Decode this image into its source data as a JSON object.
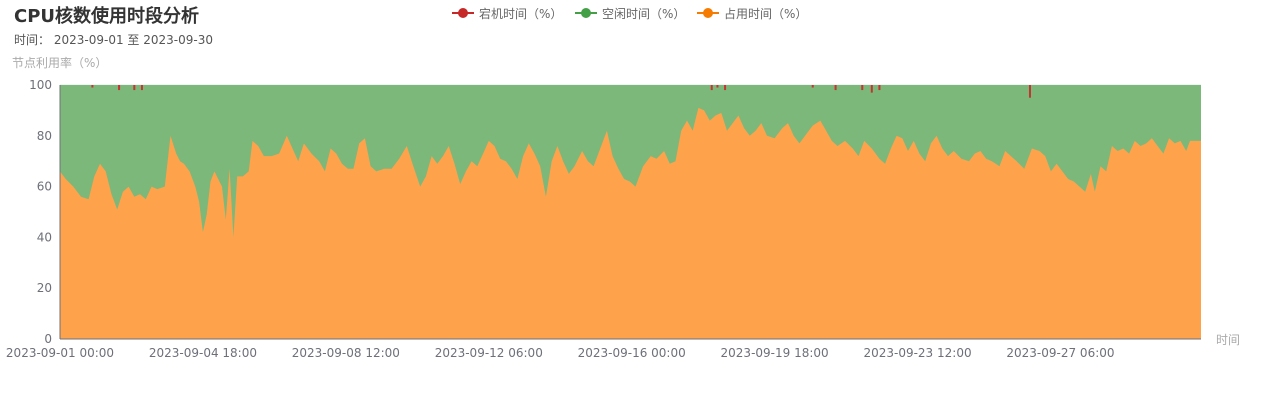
{
  "title": "CPU核数使用时段分析",
  "subtitle": {
    "label": "时间：",
    "start": "2023-09-01",
    "sep": "至",
    "end": "2023-09-30"
  },
  "colors": {
    "downtime": "#c23531",
    "idle": "#7cb87a",
    "occupied": "#ffa24c",
    "occupied_marker": "#f57c00",
    "idle_marker": "#43a047",
    "downtime_marker": "#c62828"
  },
  "chart_data": {
    "type": "area",
    "stacked": true,
    "ylabel": "节点利用率（%）",
    "xlabel": "时间",
    "ylim": [
      0,
      100
    ],
    "yticks": [
      "0",
      "20",
      "40",
      "60",
      "80",
      "100"
    ],
    "xticks": [
      "2023-09-01 00:00",
      "2023-09-04 18:00",
      "2023-09-08 12:00",
      "2023-09-12 06:00",
      "2023-09-16 00:00",
      "2023-09-19 18:00",
      "2023-09-23 12:00",
      "2023-09-27 06:00"
    ],
    "legend_position": "top-center",
    "grid": true,
    "legend": [
      {
        "name": "宕机时间（%）",
        "color_key": "downtime_marker"
      },
      {
        "name": "空闲时间（%）",
        "color_key": "idle_marker"
      },
      {
        "name": "占用时间（%）",
        "color_key": "occupied_marker"
      }
    ],
    "x_unit": "day of September 2023 (fractional, 1.0 = 2023-09-01 00:00)",
    "occupied_series": [
      [
        1.0,
        66
      ],
      [
        1.15,
        63
      ],
      [
        1.35,
        60
      ],
      [
        1.55,
        56
      ],
      [
        1.75,
        55
      ],
      [
        1.9,
        64
      ],
      [
        2.05,
        69
      ],
      [
        2.2,
        66
      ],
      [
        2.35,
        57
      ],
      [
        2.5,
        51
      ],
      [
        2.65,
        58
      ],
      [
        2.8,
        60
      ],
      [
        2.95,
        56
      ],
      [
        3.1,
        57
      ],
      [
        3.25,
        55
      ],
      [
        3.4,
        60
      ],
      [
        3.55,
        59
      ],
      [
        3.75,
        60
      ],
      [
        3.9,
        80
      ],
      [
        4.05,
        73
      ],
      [
        4.15,
        70
      ],
      [
        4.25,
        69
      ],
      [
        4.4,
        66
      ],
      [
        4.55,
        60
      ],
      [
        4.65,
        54
      ],
      [
        4.75,
        42
      ],
      [
        4.85,
        49
      ],
      [
        4.95,
        62
      ],
      [
        5.05,
        66
      ],
      [
        5.15,
        63
      ],
      [
        5.25,
        60
      ],
      [
        5.35,
        47
      ],
      [
        5.45,
        67
      ],
      [
        5.55,
        40
      ],
      [
        5.65,
        64
      ],
      [
        5.8,
        64
      ],
      [
        5.95,
        66
      ],
      [
        6.05,
        78
      ],
      [
        6.2,
        76
      ],
      [
        6.35,
        72
      ],
      [
        6.55,
        72
      ],
      [
        6.75,
        73
      ],
      [
        6.95,
        80
      ],
      [
        7.1,
        75
      ],
      [
        7.25,
        70
      ],
      [
        7.4,
        77
      ],
      [
        7.6,
        73
      ],
      [
        7.8,
        70
      ],
      [
        7.95,
        66
      ],
      [
        8.1,
        75
      ],
      [
        8.25,
        73
      ],
      [
        8.4,
        69
      ],
      [
        8.55,
        67
      ],
      [
        8.7,
        67
      ],
      [
        8.85,
        77
      ],
      [
        9.0,
        79
      ],
      [
        9.15,
        68
      ],
      [
        9.3,
        66
      ],
      [
        9.5,
        67
      ],
      [
        9.7,
        67
      ],
      [
        9.9,
        71
      ],
      [
        10.1,
        76
      ],
      [
        10.25,
        69
      ],
      [
        10.45,
        60
      ],
      [
        10.6,
        64
      ],
      [
        10.75,
        72
      ],
      [
        10.9,
        69
      ],
      [
        11.05,
        72
      ],
      [
        11.2,
        76
      ],
      [
        11.35,
        69
      ],
      [
        11.5,
        61
      ],
      [
        11.65,
        66
      ],
      [
        11.8,
        70
      ],
      [
        11.95,
        68
      ],
      [
        12.1,
        73
      ],
      [
        12.25,
        78
      ],
      [
        12.4,
        76
      ],
      [
        12.55,
        71
      ],
      [
        12.7,
        70
      ],
      [
        12.85,
        67
      ],
      [
        13.0,
        63
      ],
      [
        13.15,
        72
      ],
      [
        13.3,
        77
      ],
      [
        13.45,
        73
      ],
      [
        13.6,
        68
      ],
      [
        13.75,
        56
      ],
      [
        13.9,
        70
      ],
      [
        14.05,
        76
      ],
      [
        14.2,
        70
      ],
      [
        14.35,
        65
      ],
      [
        14.5,
        68
      ],
      [
        14.7,
        74
      ],
      [
        14.85,
        70
      ],
      [
        15.0,
        68
      ],
      [
        15.2,
        76
      ],
      [
        15.35,
        82
      ],
      [
        15.5,
        72
      ],
      [
        15.65,
        67
      ],
      [
        15.8,
        63
      ],
      [
        15.95,
        62
      ],
      [
        16.1,
        60
      ],
      [
        16.3,
        68
      ],
      [
        16.5,
        72
      ],
      [
        16.65,
        71
      ],
      [
        16.85,
        74
      ],
      [
        17.0,
        69
      ],
      [
        17.15,
        70
      ],
      [
        17.3,
        82
      ],
      [
        17.45,
        86
      ],
      [
        17.6,
        82
      ],
      [
        17.75,
        91
      ],
      [
        17.9,
        90
      ],
      [
        18.05,
        86
      ],
      [
        18.2,
        88
      ],
      [
        18.35,
        89
      ],
      [
        18.5,
        82
      ],
      [
        18.65,
        85
      ],
      [
        18.8,
        88
      ],
      [
        18.95,
        83
      ],
      [
        19.1,
        80
      ],
      [
        19.25,
        82
      ],
      [
        19.4,
        85
      ],
      [
        19.55,
        80
      ],
      [
        19.75,
        79
      ],
      [
        19.95,
        83
      ],
      [
        20.1,
        85
      ],
      [
        20.25,
        80
      ],
      [
        20.4,
        77
      ],
      [
        20.55,
        80
      ],
      [
        20.75,
        84
      ],
      [
        20.95,
        86
      ],
      [
        21.1,
        82
      ],
      [
        21.25,
        78
      ],
      [
        21.4,
        76
      ],
      [
        21.6,
        78
      ],
      [
        21.8,
        75
      ],
      [
        21.95,
        72
      ],
      [
        22.1,
        78
      ],
      [
        22.3,
        75
      ],
      [
        22.5,
        71
      ],
      [
        22.65,
        69
      ],
      [
        22.8,
        75
      ],
      [
        22.95,
        80
      ],
      [
        23.1,
        79
      ],
      [
        23.25,
        74
      ],
      [
        23.4,
        78
      ],
      [
        23.55,
        73
      ],
      [
        23.7,
        70
      ],
      [
        23.85,
        77
      ],
      [
        24.0,
        80
      ],
      [
        24.15,
        75
      ],
      [
        24.3,
        72
      ],
      [
        24.45,
        74
      ],
      [
        24.65,
        71
      ],
      [
        24.85,
        70
      ],
      [
        25.0,
        73
      ],
      [
        25.15,
        74
      ],
      [
        25.3,
        71
      ],
      [
        25.45,
        70
      ],
      [
        25.65,
        68
      ],
      [
        25.8,
        74
      ],
      [
        25.95,
        72
      ],
      [
        26.1,
        70
      ],
      [
        26.3,
        67
      ],
      [
        26.5,
        75
      ],
      [
        26.7,
        74
      ],
      [
        26.85,
        72
      ],
      [
        27.0,
        66
      ],
      [
        27.15,
        69
      ],
      [
        27.3,
        66
      ],
      [
        27.45,
        63
      ],
      [
        27.6,
        62
      ],
      [
        27.75,
        60
      ],
      [
        27.9,
        58
      ],
      [
        28.05,
        65
      ],
      [
        28.15,
        58
      ],
      [
        28.3,
        68
      ],
      [
        28.45,
        66
      ],
      [
        28.6,
        76
      ],
      [
        28.75,
        74
      ],
      [
        28.9,
        75
      ],
      [
        29.05,
        73
      ],
      [
        29.2,
        78
      ],
      [
        29.35,
        76
      ],
      [
        29.5,
        77
      ],
      [
        29.65,
        79
      ],
      [
        29.8,
        76
      ],
      [
        29.95,
        73
      ],
      [
        30.1,
        79
      ],
      [
        30.25,
        77
      ],
      [
        30.4,
        78
      ],
      [
        30.55,
        74
      ],
      [
        30.65,
        78
      ]
    ],
    "downtime_spikes": [
      [
        1.85,
        1
      ],
      [
        2.55,
        2
      ],
      [
        2.95,
        2
      ],
      [
        3.15,
        2
      ],
      [
        18.1,
        2
      ],
      [
        18.25,
        1
      ],
      [
        18.45,
        2
      ],
      [
        20.75,
        1
      ],
      [
        21.35,
        2
      ],
      [
        22.05,
        2
      ],
      [
        22.3,
        3
      ],
      [
        22.5,
        2
      ],
      [
        26.45,
        5
      ]
    ]
  }
}
